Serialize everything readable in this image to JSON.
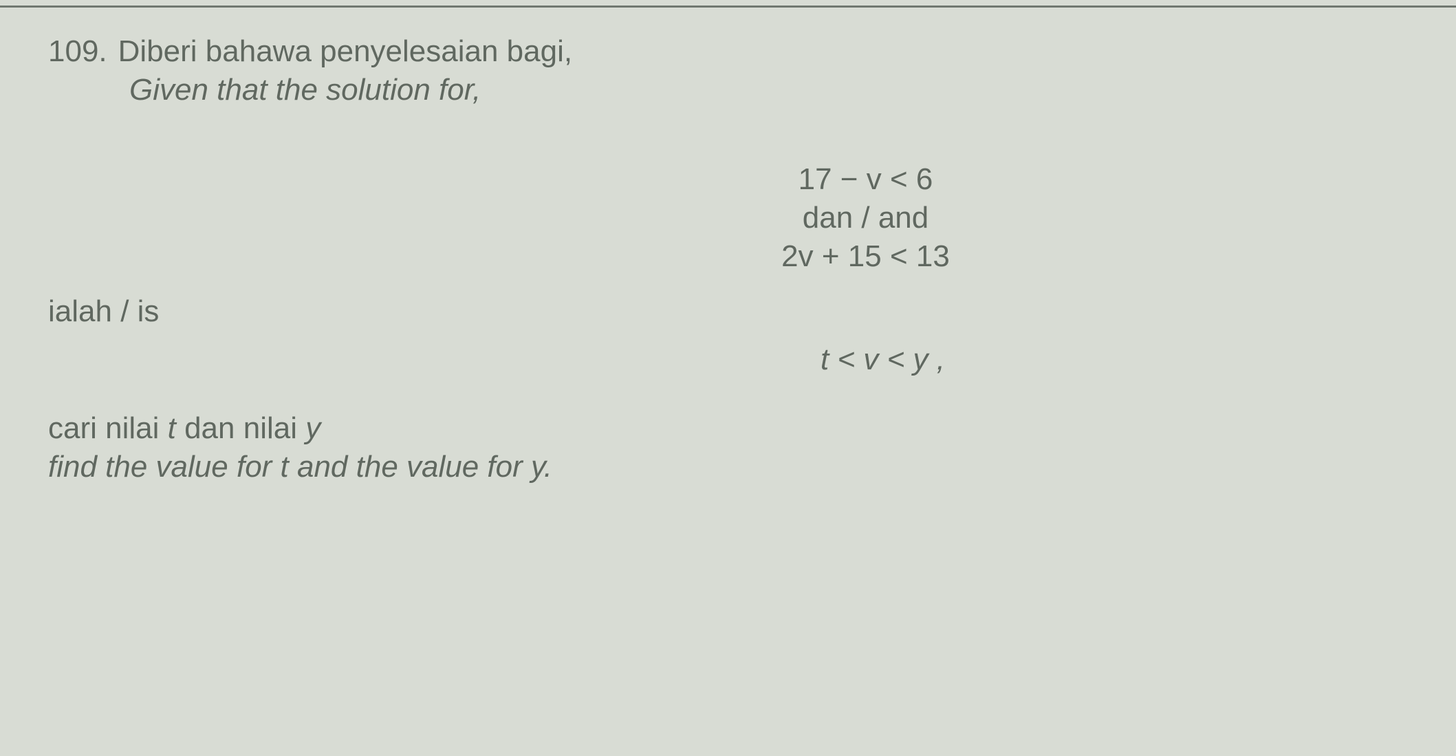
{
  "question": {
    "number": "109.",
    "text_malay": "Diberi bahawa penyelesaian bagi,",
    "text_english": "Given that the solution for,"
  },
  "equations": {
    "eq1": "17 − v < 6",
    "connector": "dan / and",
    "eq2": "2v + 15 < 13"
  },
  "solution_label": "ialah / is",
  "solution_expression": "t < v < y ,",
  "find": {
    "text_malay_prefix": "cari nilai ",
    "text_malay_mid": " dan nilai ",
    "var_t": "t",
    "var_y": "y",
    "text_english": "find the value for t and the value for y."
  },
  "colors": {
    "background": "#d8dcd4",
    "text": "#606860",
    "line": "#707870"
  },
  "typography": {
    "font_family": "Arial",
    "base_fontsize": 44
  }
}
